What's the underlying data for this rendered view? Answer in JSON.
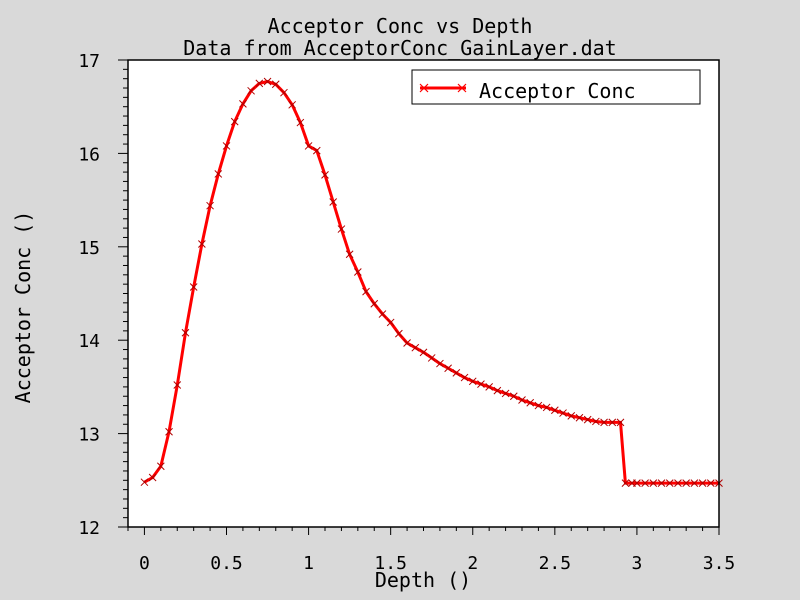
{
  "chart_data": {
    "type": "line",
    "title": "Acceptor Conc vs Depth",
    "subtitle": "Data from AcceptorConc_GainLayer.dat",
    "xlabel": "Depth ()",
    "ylabel": "Acceptor Conc ()",
    "xlim": [
      -0.1,
      3.5
    ],
    "ylim": [
      12,
      17
    ],
    "x_ticks": [
      "0",
      "0.5",
      "1",
      "1.5",
      "2",
      "2.5",
      "3",
      "3.5"
    ],
    "y_ticks": [
      "12",
      "13",
      "14",
      "15",
      "16",
      "17"
    ],
    "grid": false,
    "legend_position": "top-right",
    "series": [
      {
        "name": "Acceptor Conc",
        "color": "#ff0000",
        "marker": "x",
        "x": [
          0.0,
          0.05,
          0.1,
          0.15,
          0.2,
          0.25,
          0.3,
          0.35,
          0.4,
          0.45,
          0.5,
          0.55,
          0.6,
          0.65,
          0.7,
          0.75,
          0.8,
          0.85,
          0.9,
          0.95,
          1.0,
          1.05,
          1.1,
          1.15,
          1.2,
          1.25,
          1.3,
          1.35,
          1.4,
          1.45,
          1.5,
          1.55,
          1.6,
          1.65,
          1.7,
          1.75,
          1.8,
          1.85,
          1.9,
          1.95,
          2.0,
          2.05,
          2.1,
          2.15,
          2.2,
          2.25,
          2.3,
          2.35,
          2.4,
          2.45,
          2.5,
          2.55,
          2.6,
          2.65,
          2.7,
          2.75,
          2.8,
          2.85,
          2.9,
          2.93,
          2.97,
          3.0,
          3.05,
          3.1,
          3.15,
          3.2,
          3.25,
          3.3,
          3.35,
          3.4,
          3.45,
          3.5
        ],
        "y": [
          12.48,
          12.53,
          12.65,
          13.02,
          13.52,
          14.08,
          14.57,
          15.03,
          15.44,
          15.78,
          16.08,
          16.34,
          16.53,
          16.67,
          16.75,
          16.77,
          16.74,
          16.65,
          16.52,
          16.33,
          16.08,
          16.03,
          15.77,
          15.48,
          15.19,
          14.92,
          14.73,
          14.52,
          14.39,
          14.28,
          14.19,
          14.07,
          13.97,
          13.92,
          13.87,
          13.81,
          13.75,
          13.7,
          13.65,
          13.6,
          13.56,
          13.53,
          13.5,
          13.46,
          13.43,
          13.4,
          13.36,
          13.33,
          13.3,
          13.28,
          13.25,
          13.22,
          13.19,
          13.17,
          13.15,
          13.13,
          13.12,
          13.12,
          13.12,
          12.47,
          12.47,
          12.47,
          12.47,
          12.47,
          12.47,
          12.47,
          12.47,
          12.47,
          12.47,
          12.47,
          12.47,
          12.47
        ]
      }
    ]
  }
}
